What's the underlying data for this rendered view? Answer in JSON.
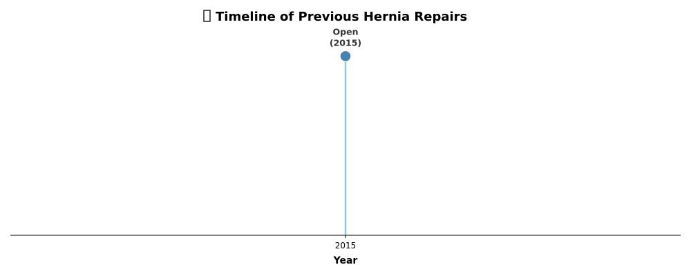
{
  "title": {
    "icon": "missing-glyph-icon",
    "text": "Timeline of Previous Hernia Repairs"
  },
  "colors": {
    "stem": "#8fcbe0",
    "marker": "#4682b4",
    "axis": "#000000",
    "label": "#333333"
  },
  "chart_data": {
    "type": "scatter",
    "style": "stem timeline",
    "title": "Timeline of Previous Hernia Repairs",
    "xlabel": "Year",
    "ylabel": "",
    "x_ticks": [
      "2015"
    ],
    "xlim": [
      2014,
      2016
    ],
    "ylim": [
      0,
      1.1
    ],
    "grid": false,
    "legend": "none",
    "points": [
      {
        "year": 2015,
        "value": 1,
        "type": "Open",
        "label_line1": "Open",
        "label_line2": "(2015)"
      }
    ]
  }
}
